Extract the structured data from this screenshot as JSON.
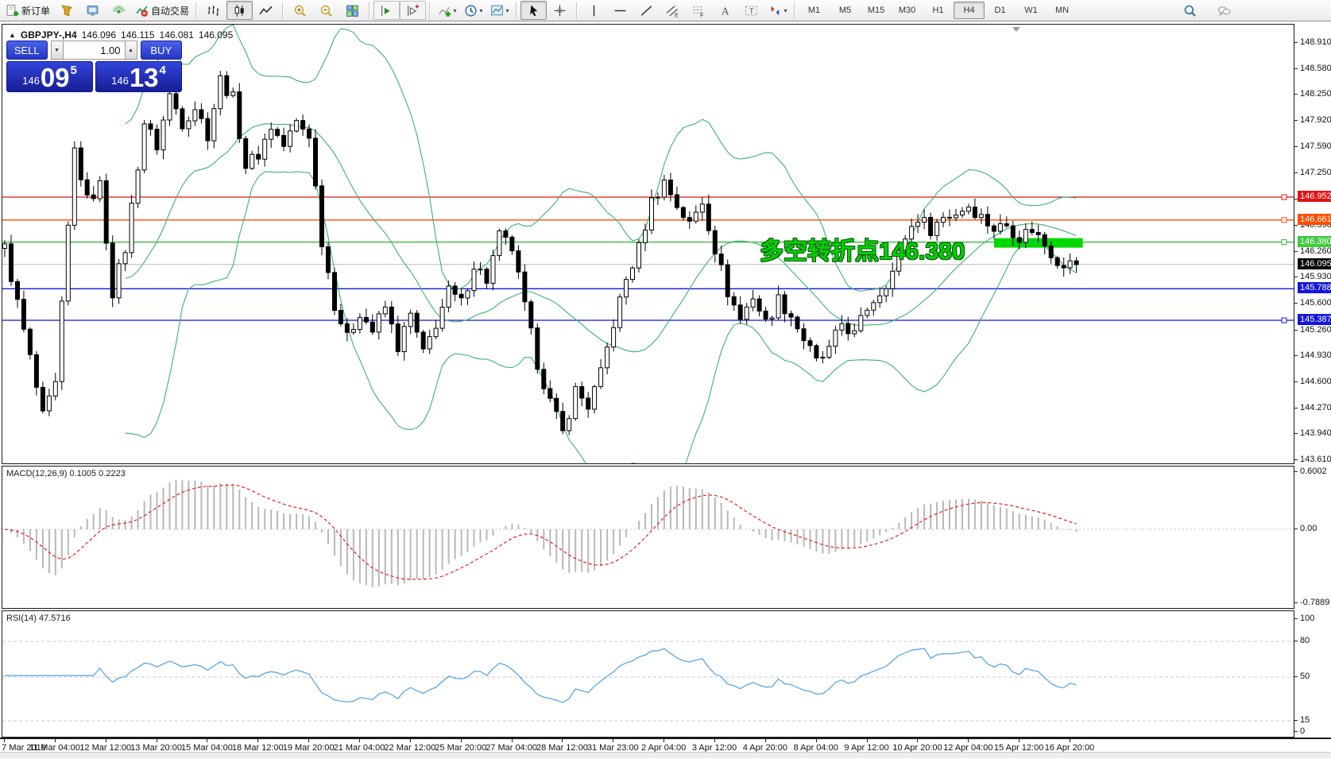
{
  "toolbar": {
    "new_order_label": "新订单",
    "autotrading_label": "自动交易",
    "timeframes": [
      "M1",
      "M5",
      "M15",
      "M30",
      "H1",
      "H4",
      "D1",
      "W1",
      "MN"
    ],
    "active_timeframe": "H4",
    "groups": [
      {
        "items": [
          {
            "icon": "new-order",
            "label_key": "new_order_label",
            "name": "new-order-button"
          },
          {
            "icon": "market",
            "name": "market-button"
          },
          {
            "icon": "metaeditor",
            "name": "metaeditor-button"
          },
          {
            "icon": "signals",
            "name": "signals-button"
          },
          {
            "icon": "autotrading",
            "label_key": "autotrading_label",
            "name": "autotrading-button"
          }
        ]
      },
      {
        "items": [
          {
            "icon": "bar-chart",
            "name": "bar-chart-button"
          },
          {
            "icon": "candle-chart",
            "name": "candle-chart-button",
            "active": true
          },
          {
            "icon": "line-chart",
            "name": "line-chart-button"
          }
        ]
      },
      {
        "items": [
          {
            "icon": "zoom-in",
            "name": "zoom-in-button"
          },
          {
            "icon": "zoom-out",
            "name": "zoom-out-button"
          },
          {
            "icon": "tile-windows",
            "name": "tile-windows-button"
          }
        ]
      },
      {
        "items": [
          {
            "icon": "auto-scroll",
            "name": "auto-scroll-button",
            "boxed": true
          },
          {
            "icon": "chart-shift",
            "name": "chart-shift-button",
            "boxed": true
          }
        ]
      },
      {
        "items": [
          {
            "icon": "add-indicator",
            "name": "indicators-button",
            "dropdown": true
          },
          {
            "icon": "periods",
            "name": "periods-button",
            "dropdown": true
          },
          {
            "icon": "templates",
            "name": "templates-button",
            "dropdown": true
          }
        ]
      },
      {
        "items": [
          {
            "icon": "cursor",
            "name": "cursor-button",
            "active": true
          },
          {
            "icon": "crosshair",
            "name": "crosshair-button"
          }
        ]
      },
      {
        "items": [
          {
            "icon": "vertical-line",
            "name": "vertical-line-button"
          },
          {
            "icon": "horizontal-line",
            "name": "horizontal-line-button"
          },
          {
            "icon": "trendline",
            "name": "trendline-button"
          },
          {
            "icon": "channel",
            "name": "channel-button"
          },
          {
            "icon": "fibonacci",
            "name": "fibonacci-button"
          },
          {
            "icon": "text",
            "name": "text-button"
          },
          {
            "icon": "text-label",
            "name": "text-label-button"
          },
          {
            "icon": "arrows",
            "name": "arrows-button",
            "dropdown": true
          }
        ]
      },
      {
        "type": "timeframes"
      }
    ],
    "right_icons": [
      {
        "icon": "search",
        "name": "search-button"
      },
      {
        "icon": "chat",
        "name": "chat-button"
      }
    ]
  },
  "symbol_bar": {
    "collapse_icon": "▲",
    "symbol": "GBPJPY-,H4",
    "open": "146.096",
    "high": "146.115",
    "low": "146.081",
    "close": "146.095"
  },
  "trade_panel": {
    "sell_label": "SELL",
    "buy_label": "BUY",
    "volume": "1.00",
    "spin_down": "▼",
    "spin_up": "▲",
    "price_prefix": "146",
    "sell_big": "09",
    "sell_sup": "5",
    "buy_big": "13",
    "buy_sup": "4"
  },
  "annotation": {
    "text": "多空转折点146.380",
    "color": "#00d200"
  },
  "price_axis": {
    "ticks": [
      "148.910",
      "148.580",
      "148.250",
      "147.920",
      "147.590",
      "147.250",
      "146.920",
      "146.590",
      "146.260",
      "145.930",
      "145.600",
      "145.260",
      "144.930",
      "144.600",
      "144.270",
      "143.940",
      "143.610"
    ],
    "tags": [
      {
        "value": "146.952",
        "bg": "#e31212"
      },
      {
        "value": "146.661",
        "bg": "#ff4d00"
      },
      {
        "value": "146.380",
        "bg": "#3ecb3e"
      },
      {
        "value": "146.095",
        "bg": "#000000"
      },
      {
        "value": "145.788",
        "bg": "#1414e0"
      },
      {
        "value": "145.387",
        "bg": "#1414e0"
      }
    ]
  },
  "indicators": {
    "macd_label": "MACD(12,26,9) 0.1005 0.2223",
    "macd_ticks": [
      [
        "0.6002",
        593
      ],
      [
        "0.00",
        665
      ],
      [
        "-0.7889",
        758
      ]
    ],
    "rsi_label": "RSI(14) 47.5716",
    "rsi_ticks": [
      [
        "100",
        778
      ],
      [
        "80",
        806
      ],
      [
        "50",
        851
      ],
      [
        "15",
        906
      ],
      [
        "0",
        920
      ]
    ],
    "rsi_levels": [
      806,
      851,
      906
    ]
  },
  "time_axis": [
    "7 Mar 2019",
    "11 Mar 04:00",
    "12 Mar 12:00",
    "13 Mar 20:00",
    "15 Mar 04:00",
    "18 Mar 12:00",
    "19 Mar 20:00",
    "21 Mar 04:00",
    "22 Mar 12:00",
    "25 Mar 20:00",
    "27 Mar 04:00",
    "28 Mar 12:00",
    "31 Mar 23:00",
    "2 Apr 04:00",
    "3 Apr 12:00",
    "4 Apr 20:00",
    "8 Apr 04:00",
    "9 Apr 12:00",
    "10 Apr 20:00",
    "12 Apr 04:00",
    "15 Apr 12:00",
    "16 Apr 20:00"
  ],
  "chart_data": {
    "type": "candlestick",
    "symbol": "GBPJPY-",
    "timeframe": "H4",
    "ohlc_current": {
      "open": 146.096,
      "high": 146.115,
      "low": 146.081,
      "close": 146.095
    },
    "bid": 146.095,
    "ask": 146.134,
    "y_axis_range": [
      143.61,
      148.91
    ],
    "x_axis_start": "7 Mar 2019",
    "x_axis_end": "16 Apr 20:00",
    "candle_count": 170,
    "bull_color": "#ffffff",
    "bear_color": "#000000",
    "outline_color": "#000000",
    "price_waypoints": [
      [
        0,
        146.3
      ],
      [
        2,
        145.6
      ],
      [
        4,
        144.9
      ],
      [
        6,
        144.15
      ],
      [
        8,
        144.55
      ],
      [
        11,
        147.55
      ],
      [
        13,
        146.9
      ],
      [
        15,
        147.1
      ],
      [
        17,
        145.75
      ],
      [
        19,
        146.3
      ],
      [
        22,
        147.9
      ],
      [
        24,
        147.6
      ],
      [
        26,
        148.25
      ],
      [
        28,
        147.9
      ],
      [
        30,
        148.1
      ],
      [
        32,
        147.75
      ],
      [
        34,
        148.45
      ],
      [
        36,
        148.2
      ],
      [
        38,
        147.35
      ],
      [
        40,
        147.5
      ],
      [
        42,
        147.85
      ],
      [
        44,
        147.6
      ],
      [
        46,
        147.9
      ],
      [
        48,
        147.75
      ],
      [
        50,
        146.4
      ],
      [
        52,
        145.6
      ],
      [
        54,
        145.15
      ],
      [
        56,
        145.5
      ],
      [
        58,
        145.25
      ],
      [
        60,
        145.55
      ],
      [
        62,
        145.05
      ],
      [
        64,
        145.45
      ],
      [
        66,
        144.95
      ],
      [
        68,
        145.35
      ],
      [
        70,
        145.75
      ],
      [
        72,
        145.6
      ],
      [
        74,
        146.1
      ],
      [
        76,
        145.9
      ],
      [
        78,
        146.45
      ],
      [
        80,
        146.3
      ],
      [
        82,
        145.55
      ],
      [
        84,
        144.85
      ],
      [
        86,
        144.35
      ],
      [
        88,
        143.95
      ],
      [
        90,
        144.5
      ],
      [
        92,
        144.3
      ],
      [
        94,
        144.7
      ],
      [
        96,
        145.35
      ],
      [
        98,
        145.9
      ],
      [
        100,
        146.3
      ],
      [
        102,
        146.9
      ],
      [
        104,
        147.15
      ],
      [
        106,
        146.85
      ],
      [
        108,
        146.6
      ],
      [
        110,
        146.9
      ],
      [
        112,
        146.3
      ],
      [
        114,
        145.75
      ],
      [
        116,
        145.4
      ],
      [
        118,
        145.7
      ],
      [
        120,
        145.35
      ],
      [
        122,
        145.65
      ],
      [
        124,
        145.45
      ],
      [
        126,
        145.15
      ],
      [
        128,
        144.85
      ],
      [
        130,
        145.0
      ],
      [
        132,
        145.35
      ],
      [
        134,
        145.2
      ],
      [
        136,
        145.55
      ],
      [
        138,
        145.75
      ],
      [
        140,
        146.0
      ],
      [
        142,
        146.45
      ],
      [
        144,
        146.7
      ],
      [
        146,
        146.55
      ],
      [
        148,
        146.7
      ],
      [
        150,
        146.75
      ],
      [
        152,
        146.85
      ],
      [
        154,
        146.7
      ],
      [
        156,
        146.55
      ],
      [
        158,
        146.6
      ],
      [
        160,
        146.45
      ],
      [
        162,
        146.55
      ],
      [
        164,
        146.35
      ],
      [
        166,
        146.15
      ],
      [
        168,
        146.1
      ],
      [
        169,
        146.095
      ]
    ],
    "overlays": {
      "bollinger_bands": {
        "period": 20,
        "deviation": 2,
        "color": "#3CB371"
      }
    },
    "horizontal_lines": [
      {
        "price": 146.952,
        "color": "#e31212",
        "handle": true
      },
      {
        "price": 146.661,
        "color": "#ff4d00",
        "handle": true
      },
      {
        "price": 146.38,
        "color": "#2eb82e",
        "handle": true
      },
      {
        "price": 145.788,
        "color": "#1414e0",
        "handle": false
      },
      {
        "price": 145.387,
        "color": "#1414e0",
        "handle": true
      }
    ],
    "current_price_line": {
      "price": 146.095,
      "color": "#bcbcbc"
    },
    "highlight_zone": {
      "candle_from": 156,
      "candle_to": 170,
      "price_high": 146.43,
      "price_low": 146.31,
      "color": "#00d800"
    },
    "indicators": [
      {
        "name": "MACD",
        "params": [
          12,
          26,
          9
        ],
        "values": [
          0.1005,
          0.2223
        ],
        "range": [
          -0.7889,
          0.6002
        ],
        "histogram_color": "#b8b8b8",
        "signal_color": "#e02020"
      },
      {
        "name": "RSI",
        "params": [
          14
        ],
        "value": 47.5716,
        "range": [
          0,
          100
        ],
        "levels": [
          80,
          50,
          15
        ],
        "color": "#4da0e0"
      }
    ]
  }
}
